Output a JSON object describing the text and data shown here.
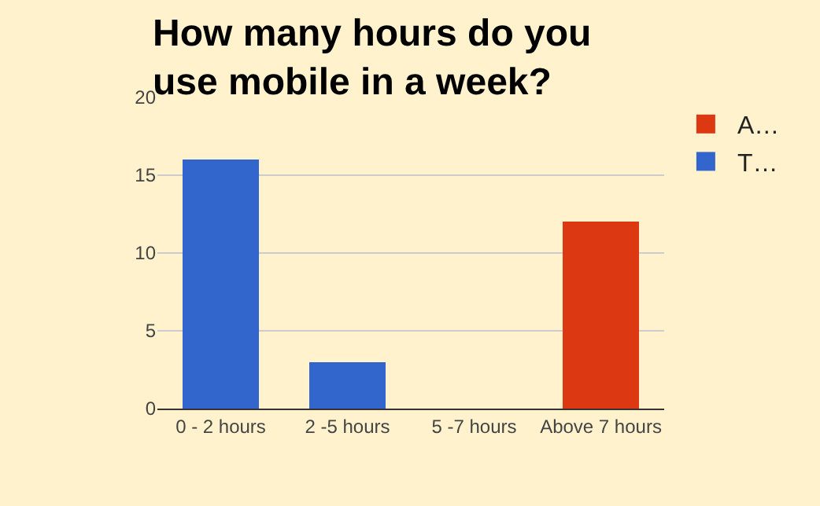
{
  "chart_data": {
    "type": "bar",
    "title": "How many hours do you use mobile in a week?",
    "categories": [
      "0 - 2 hours",
      "2 -5 hours",
      "5 -7 hours",
      "Above 7 hours"
    ],
    "stacked": true,
    "series": [
      {
        "name": "A…",
        "color": "#dc3912",
        "values": [
          null,
          null,
          null,
          12
        ]
      },
      {
        "name": "T…",
        "color": "#3366cc",
        "values": [
          16,
          3,
          null,
          null
        ]
      }
    ],
    "ylim": [
      0,
      20
    ],
    "yticks": [
      0,
      5,
      10,
      15,
      20
    ],
    "grid": "y",
    "legend": "top right"
  }
}
